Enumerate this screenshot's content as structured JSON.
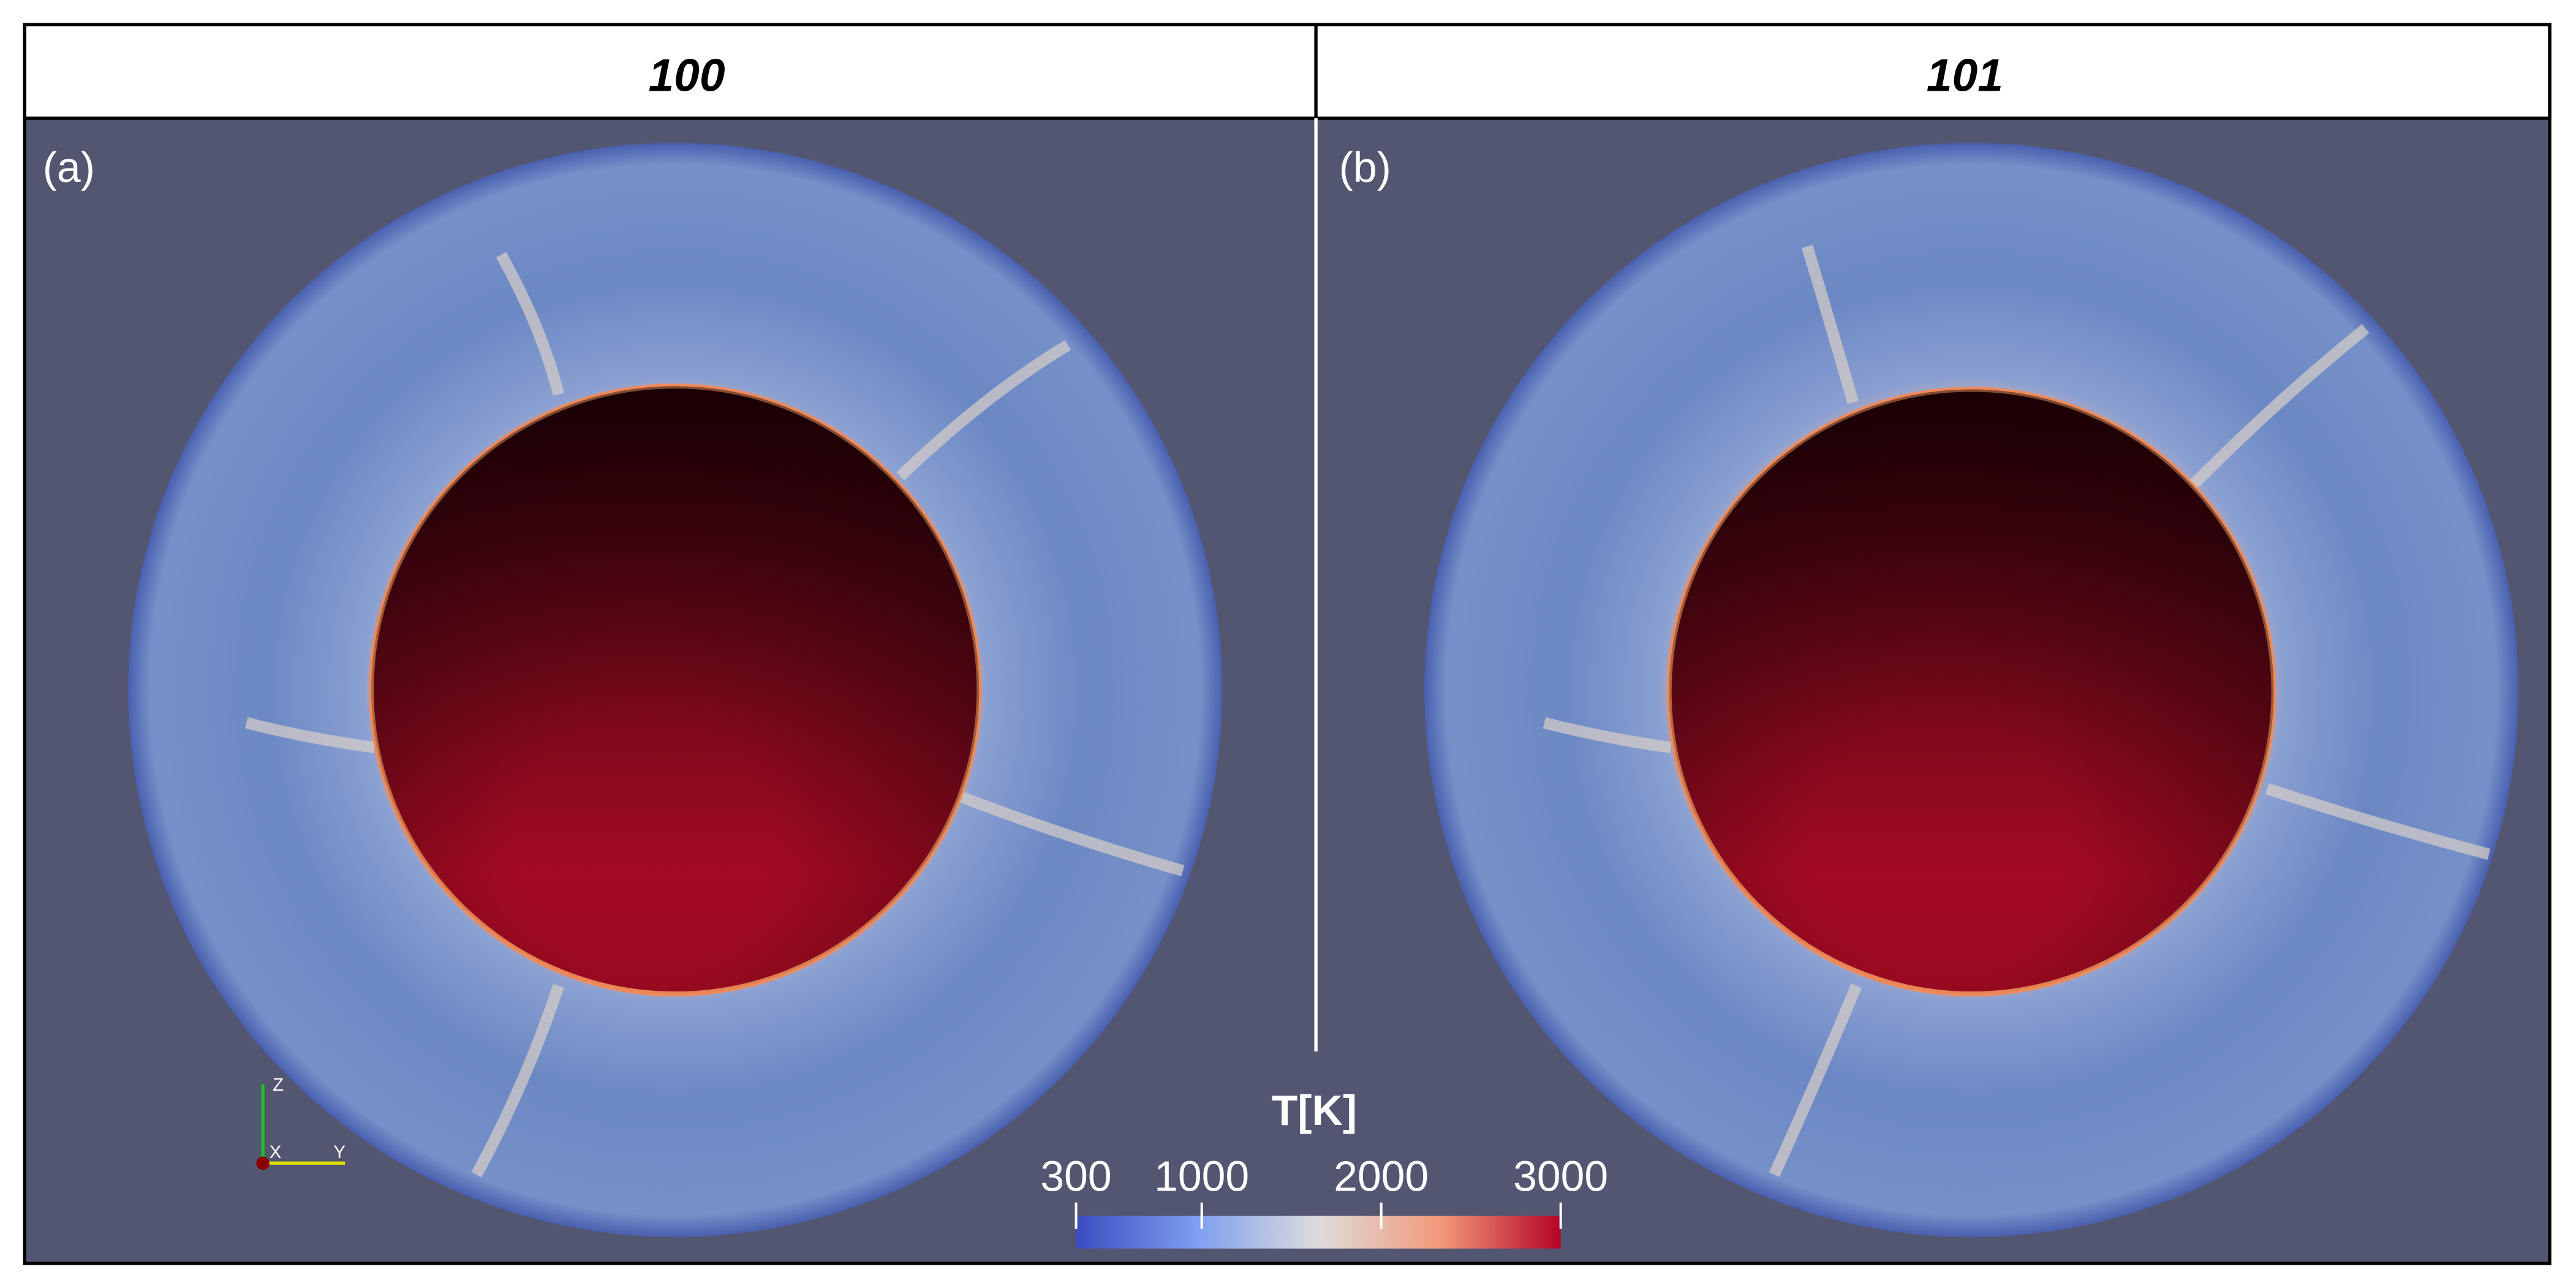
{
  "panels": [
    {
      "title": "100",
      "label": "(a)"
    },
    {
      "title": "101",
      "label": "(b)"
    }
  ],
  "triad": {
    "z": "Z",
    "x": "X",
    "y": "Y"
  },
  "colorbar": {
    "title": "T[K]",
    "range": [
      300,
      3000
    ],
    "ticks": [
      300,
      1000,
      2000,
      3000
    ]
  }
}
